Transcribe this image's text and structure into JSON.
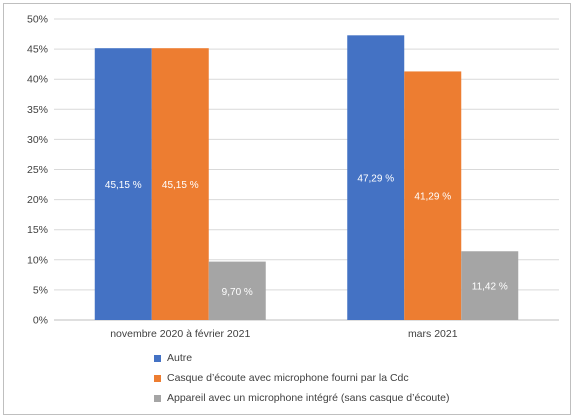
{
  "chart_data": {
    "type": "bar",
    "categories": [
      "novembre 2020 à février 2021",
      "mars 2021"
    ],
    "series": [
      {
        "name": "Autre",
        "color": "#4472C4",
        "values": [
          45.15,
          47.29
        ],
        "labels": [
          "45,15 %",
          "47,29 %"
        ],
        "label_color": "#ffffff"
      },
      {
        "name": "Casque d’écoute avec microphone fourni par la Cdc",
        "color": "#ED7D31",
        "values": [
          45.15,
          41.29
        ],
        "labels": [
          "45,15 %",
          "41,29 %"
        ],
        "label_color": "#ffffff"
      },
      {
        "name": "Appareil avec un microphone intégré (sans casque d’écoute)",
        "color": "#A5A5A5",
        "values": [
          9.7,
          11.42
        ],
        "labels": [
          "9,70 %",
          "11,42 %"
        ],
        "label_color": "#ffffff"
      }
    ],
    "yticks": [
      "0%",
      "5%",
      "10%",
      "15%",
      "20%",
      "25%",
      "30%",
      "35%",
      "40%",
      "45%",
      "50%"
    ],
    "ylim": [
      0,
      50
    ],
    "grid": true,
    "legend_position": "bottom"
  }
}
